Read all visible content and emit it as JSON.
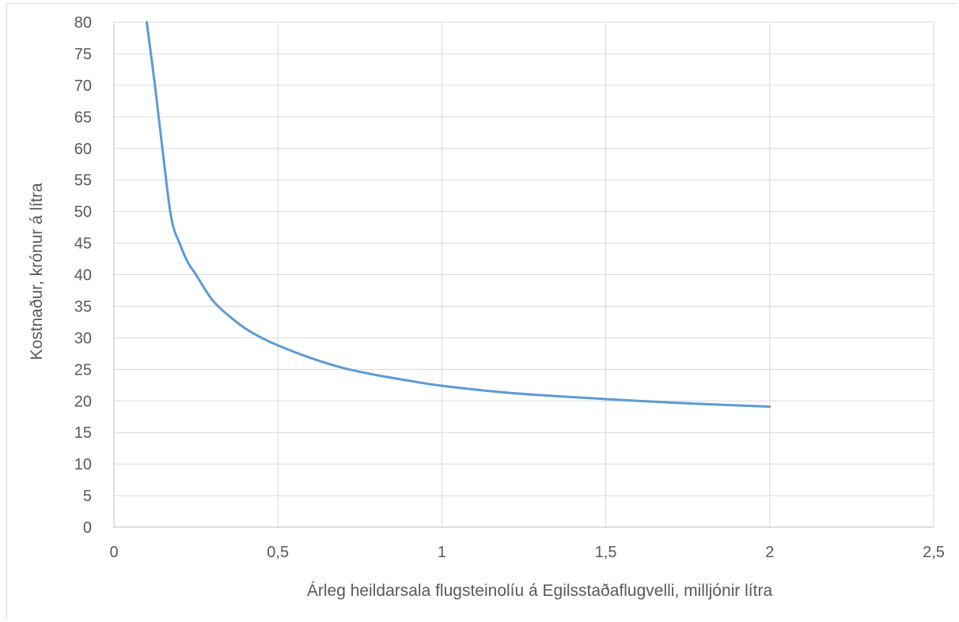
{
  "chart_data": {
    "type": "line",
    "xlabel": "Árleg heildarsala flugsteinolíu á Egilsstaðaflugvelli, milljónir lítra",
    "ylabel": "Kostnaður, krónur á lítra",
    "xlim": [
      0,
      2.5
    ],
    "ylim": [
      0,
      80
    ],
    "grid": true,
    "x_ticks": [
      "0",
      "0,5",
      "1",
      "1,5",
      "2",
      "2,5"
    ],
    "y_ticks": [
      "0",
      "5",
      "10",
      "15",
      "20",
      "25",
      "30",
      "35",
      "40",
      "45",
      "50",
      "55",
      "60",
      "65",
      "70",
      "75",
      "80"
    ],
    "series": [
      {
        "color": "#5b9bd5",
        "x": [
          0.1,
          0.125,
          0.15,
          0.175,
          0.2,
          0.225,
          0.25,
          0.3,
          0.35,
          0.4,
          0.45,
          0.5,
          0.6,
          0.7,
          0.8,
          0.9,
          1.0,
          1.2,
          1.4,
          1.6,
          1.8,
          2.0
        ],
        "y": [
          80,
          70,
          59,
          49,
          45,
          42,
          40,
          36,
          33.5,
          31.5,
          30,
          28.8,
          26.8,
          25.2,
          24.1,
          23.2,
          22.4,
          21.3,
          20.6,
          20.0,
          19.5,
          19.1
        ]
      }
    ]
  }
}
